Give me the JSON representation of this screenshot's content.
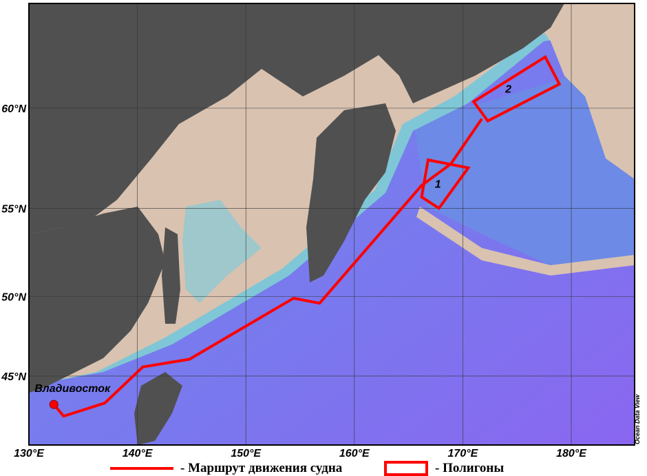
{
  "map": {
    "projection": "mercator",
    "lon_range": [
      130,
      186
    ],
    "lat_range": [
      41.3,
      64.5
    ],
    "lon_ticks": [
      {
        "value": 130,
        "label": "130°E"
      },
      {
        "value": 140,
        "label": "140°E"
      },
      {
        "value": 150,
        "label": "150°E"
      },
      {
        "value": 160,
        "label": "160°E"
      },
      {
        "value": 170,
        "label": "170°E"
      },
      {
        "value": 180,
        "label": "180°E"
      }
    ],
    "lat_ticks": [
      {
        "value": 45,
        "label": "45°N"
      },
      {
        "value": 50,
        "label": "50°N"
      },
      {
        "value": 55,
        "label": "55°N"
      },
      {
        "value": 60,
        "label": "60°N"
      }
    ],
    "grid": true,
    "colors": {
      "land": "#505050",
      "shelf": "#d9c2b0",
      "shallow": "#7fc6d6",
      "deep": "#6f86ea",
      "abyss": "#8a6cf0",
      "route": "#ff0000"
    },
    "city": {
      "name": "Владивосток",
      "lon": 132.3,
      "lat": 43.1
    },
    "route": [
      [
        132.3,
        43.1
      ],
      [
        133.2,
        42.3
      ],
      [
        137.0,
        43.2
      ],
      [
        140.5,
        45.6
      ],
      [
        144.8,
        46.1
      ],
      [
        154.4,
        49.9
      ],
      [
        156.8,
        49.6
      ],
      [
        166.2,
        56.2
      ],
      [
        168.9,
        57.3
      ],
      [
        171.75,
        59.5
      ]
    ],
    "polygons": [
      {
        "label": "1",
        "points": [
          [
            166.8,
            57.5
          ],
          [
            170.5,
            57.1
          ],
          [
            167.8,
            55.0
          ],
          [
            166.2,
            55.6
          ]
        ],
        "label_pos": [
          167.7,
          56.3
        ]
      },
      {
        "label": "2",
        "points": [
          [
            171.0,
            60.3
          ],
          [
            177.6,
            62.3
          ],
          [
            178.9,
            61.1
          ],
          [
            172.3,
            59.4
          ]
        ],
        "label_pos": [
          174.2,
          60.9
        ]
      }
    ],
    "credit": "Ocean Data View"
  },
  "legend": {
    "route_label": "- Маршрут движения судна",
    "polygons_label": "- Полигоны"
  }
}
